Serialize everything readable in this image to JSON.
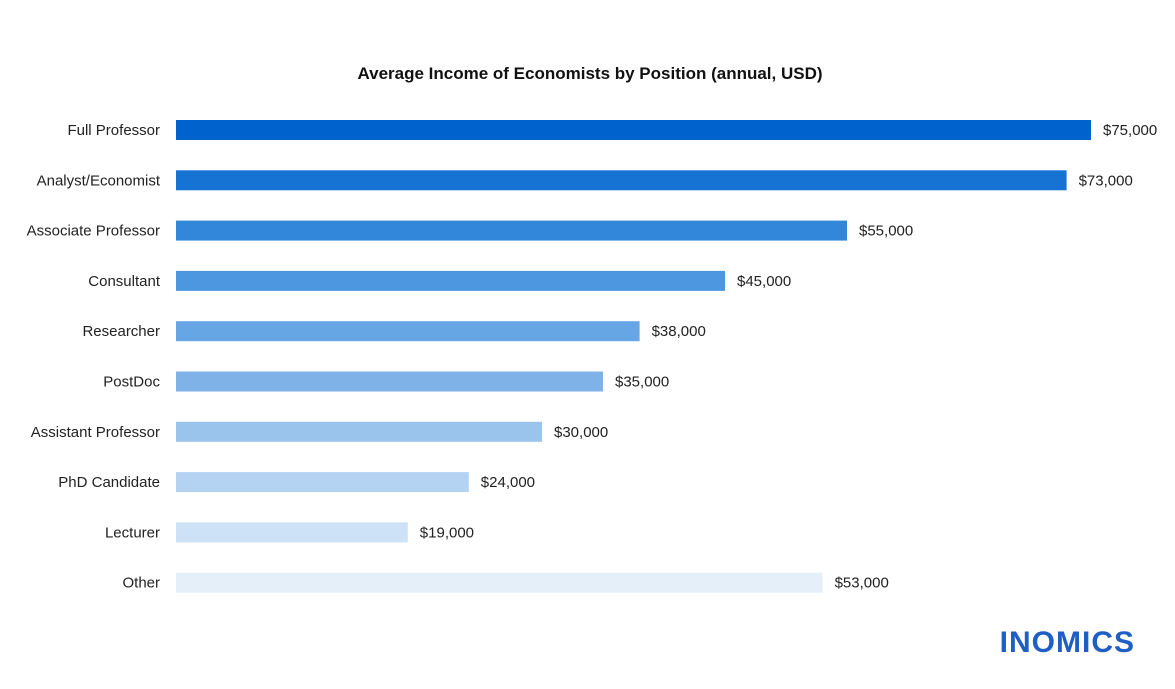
{
  "chart_data": {
    "type": "bar",
    "orientation": "horizontal",
    "title": "Average Income of Economists by Position (annual, USD)",
    "xlabel": "",
    "ylabel": "",
    "grid": false,
    "categories": [
      "Full Professor",
      "Analyst/Economist",
      "Associate Professor",
      "Consultant",
      "Researcher",
      "PostDoc",
      "Assistant Professor",
      "PhD Candidate",
      "Lecturer",
      "Other"
    ],
    "values": [
      75000,
      73000,
      55000,
      45000,
      38000,
      35000,
      30000,
      24000,
      19000,
      53000
    ],
    "value_labels": [
      "$75,000",
      "$73,000",
      "$55,000",
      "$45,000",
      "$38,000",
      "$35,000",
      "$30,000",
      "$24,000",
      "$19,000",
      "$53,000"
    ],
    "bar_colors": [
      "#0062cc",
      "#1673d4",
      "#3387db",
      "#4c97e0",
      "#66a6e4",
      "#7fb3e8",
      "#9bc4ed",
      "#b4d3f2",
      "#cde2f6",
      "#e4effa"
    ],
    "xlim": [
      0,
      75000
    ]
  },
  "branding": {
    "logo_text": "INOMICS",
    "logo_color": "#1f5fc4"
  }
}
